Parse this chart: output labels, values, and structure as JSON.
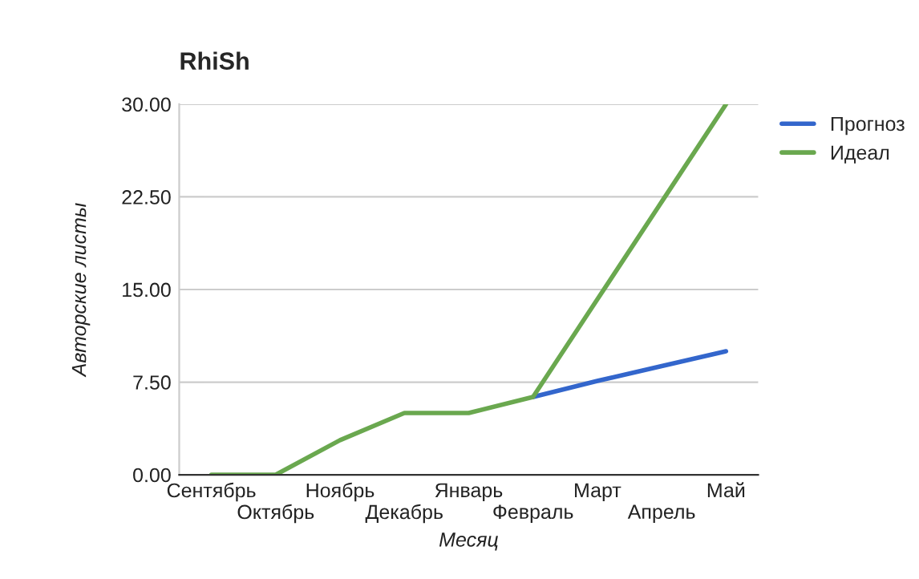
{
  "chart_data": {
    "type": "line",
    "title": "RhiSh",
    "xlabel": "Месяц",
    "ylabel": "Авторские листы",
    "categories": [
      "Сентябрь",
      "Октябрь",
      "Ноябрь",
      "Декабрь",
      "Январь",
      "Февраль",
      "Март",
      "Апрель",
      "Май"
    ],
    "series": [
      {
        "name": "Прогноз",
        "color": "#3366cc",
        "values": [
          null,
          null,
          null,
          null,
          null,
          6.3,
          7.6,
          8.8,
          10
        ]
      },
      {
        "name": "Идеал",
        "color": "#6aa84f",
        "values": [
          0,
          0,
          2.8,
          5,
          5,
          6.3,
          14.2,
          22.1,
          30
        ]
      }
    ],
    "ylim": [
      0,
      30
    ],
    "yticks": [
      {
        "value": 0,
        "label": "0.00"
      },
      {
        "value": 7.5,
        "label": "7.50"
      },
      {
        "value": 15,
        "label": "15.00"
      },
      {
        "value": 22.5,
        "label": "22.50"
      },
      {
        "value": 30,
        "label": "30.00"
      }
    ],
    "grid": "y",
    "legend": "right",
    "line_style": "solid",
    "marker": "none"
  }
}
